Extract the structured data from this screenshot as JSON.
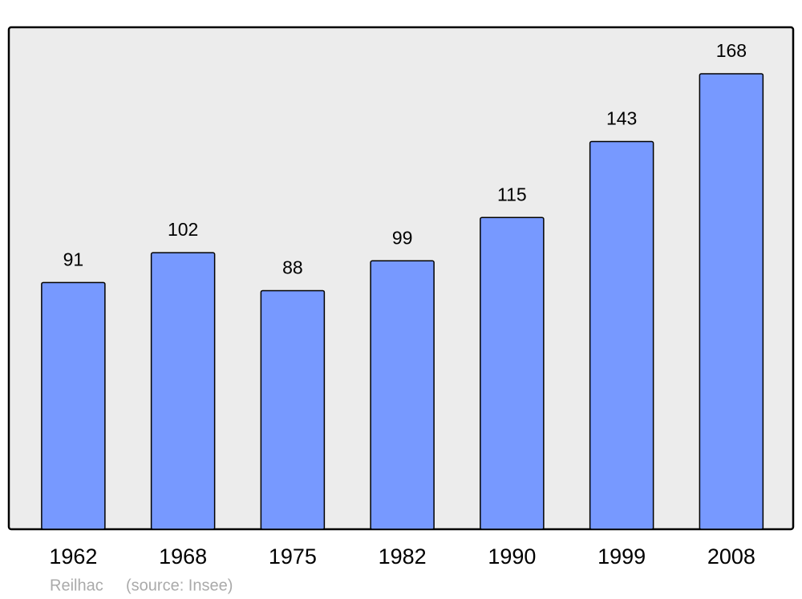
{
  "chart_data": {
    "type": "bar",
    "categories": [
      "1962",
      "1968",
      "1975",
      "1982",
      "1990",
      "1999",
      "2008"
    ],
    "values": [
      91,
      102,
      88,
      99,
      115,
      143,
      168
    ],
    "color": "#7799ff",
    "caption": "Reilhac",
    "source": "(source: Insee)"
  }
}
